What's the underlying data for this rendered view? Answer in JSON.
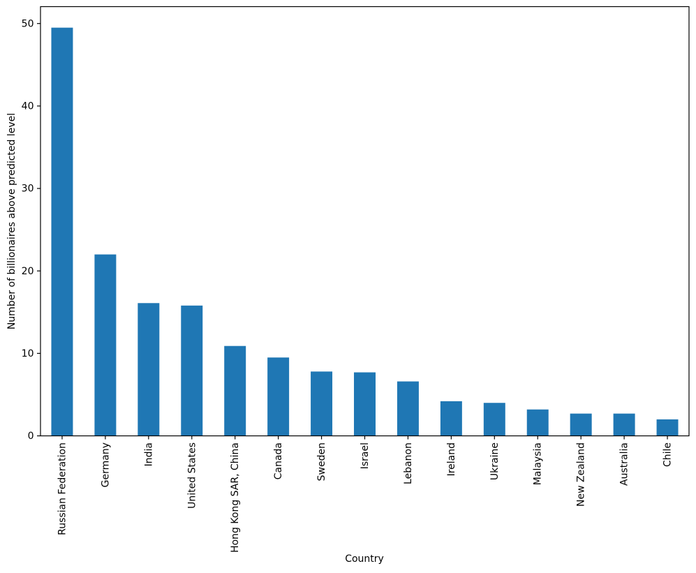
{
  "figure": {
    "background": "#ffffff",
    "text_color": "#000000",
    "spine_color": "#000000"
  },
  "chart_data": {
    "type": "bar",
    "title": "",
    "xlabel": "Country",
    "ylabel": "Number of billionaires above predicted level",
    "categories": [
      "Russian Federation",
      "Germany",
      "India",
      "United States",
      "Hong Kong SAR, China",
      "Canada",
      "Sweden",
      "Israel",
      "Lebanon",
      "Ireland",
      "Ukraine",
      "Malaysia",
      "New Zealand",
      "Australia",
      "Chile"
    ],
    "values": [
      49.5,
      22.0,
      16.1,
      15.8,
      10.9,
      9.5,
      7.8,
      7.7,
      6.6,
      4.2,
      4.0,
      3.2,
      2.7,
      2.7,
      2.0
    ],
    "yticks": [
      0,
      10,
      20,
      30,
      40,
      50
    ],
    "ylim": [
      0,
      52.05
    ],
    "bar_color": "#1f77b4",
    "bar_width_fraction": 0.5,
    "x_tick_label_rotation": 90,
    "grid": false,
    "legend_position": "none"
  }
}
